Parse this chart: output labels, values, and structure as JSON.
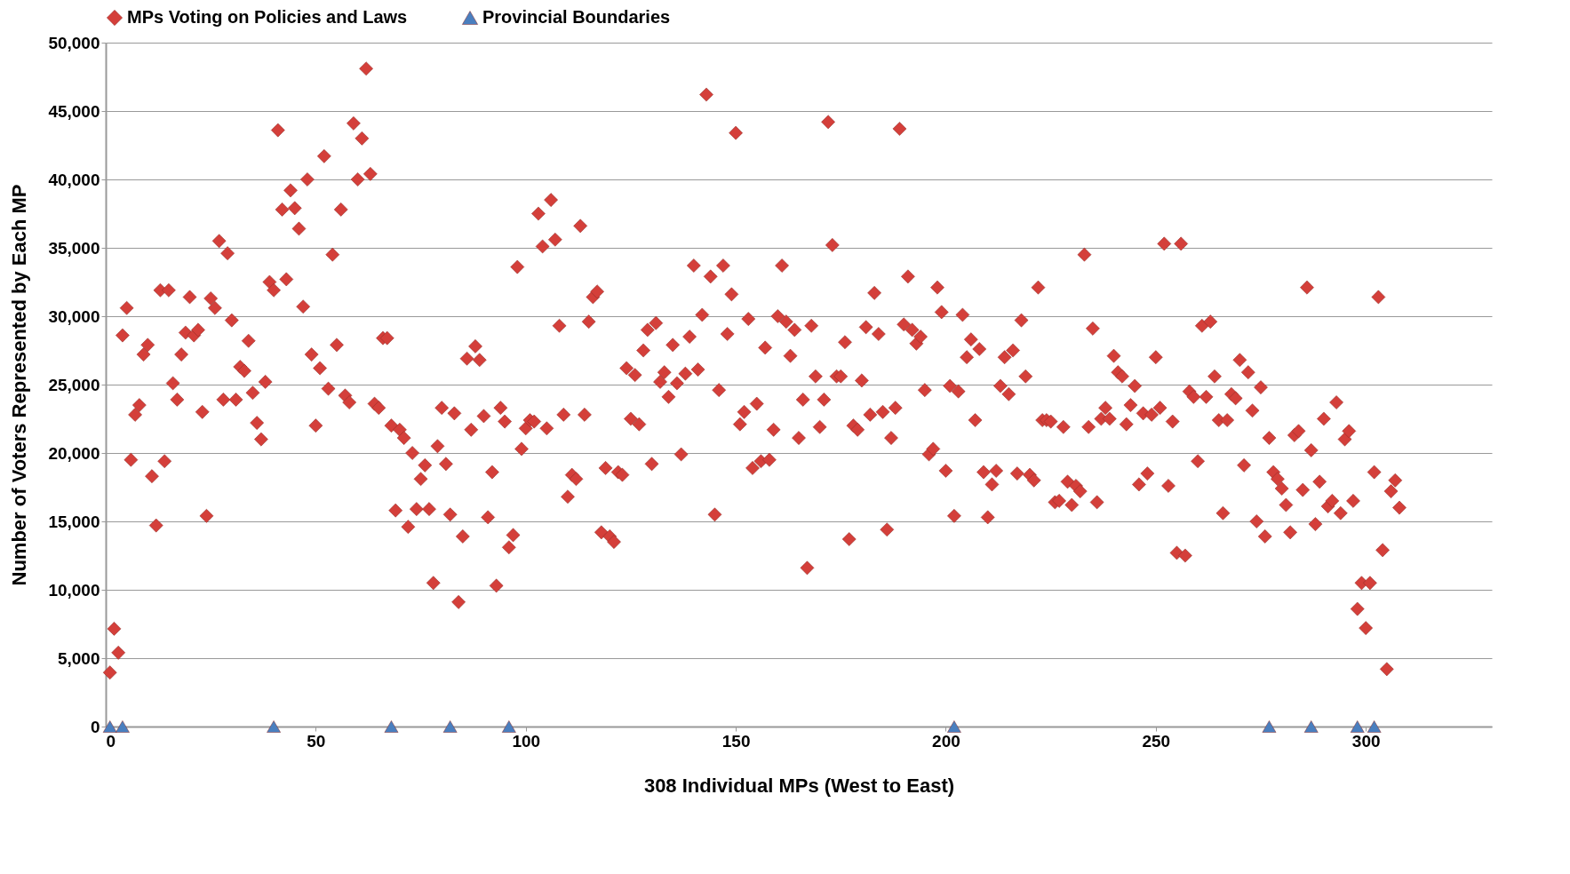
{
  "chart_data": {
    "type": "scatter",
    "xlabel": "308 Individual MPs (West to East)",
    "ylabel": "Number of Voters Represented by Each MP",
    "xlim": [
      0,
      330
    ],
    "xticks": [
      0,
      50,
      100,
      150,
      200,
      250,
      300
    ],
    "ylim": [
      0,
      50000
    ],
    "yticks": [
      {
        "value": 0,
        "label": "0"
      },
      {
        "value": 5000,
        "label": "5,000"
      },
      {
        "value": 10000,
        "label": "10,000"
      },
      {
        "value": 15000,
        "label": "15,000"
      },
      {
        "value": 20000,
        "label": "20,000"
      },
      {
        "value": 25000,
        "label": "25,000"
      },
      {
        "value": 30000,
        "label": "30,000"
      },
      {
        "value": 35000,
        "label": "35,000"
      },
      {
        "value": 40000,
        "label": "40,000"
      },
      {
        "value": 45000,
        "label": "45,000"
      },
      {
        "value": 50000,
        "label": "50,000"
      }
    ],
    "grid": "y",
    "legend": "top",
    "series": [
      {
        "name": "MPs Voting on Policies and Laws",
        "color": "#d43f3a",
        "marker": "diamond",
        "x": [
          1,
          2,
          3,
          4,
          5,
          6,
          7,
          8,
          9,
          10,
          11,
          12,
          13,
          14,
          15,
          16,
          17,
          18,
          19,
          20,
          21,
          22,
          23,
          24,
          25,
          26,
          27,
          28,
          29,
          30,
          31,
          32,
          33,
          34,
          35,
          36,
          37,
          38,
          39,
          40,
          41,
          42,
          43,
          44,
          45,
          46,
          47,
          48,
          49,
          50,
          51,
          52,
          53,
          54,
          55,
          56,
          57,
          58,
          59,
          60,
          61,
          62,
          63,
          64,
          65,
          66,
          67,
          68,
          69,
          70,
          71,
          72,
          73,
          74,
          75,
          76,
          77,
          78,
          79,
          80,
          81,
          82,
          83,
          84,
          85,
          86,
          87,
          88,
          89,
          90,
          91,
          92,
          93,
          94,
          95,
          96,
          97,
          98,
          99,
          100,
          101,
          102,
          103,
          104,
          105,
          106,
          107,
          108,
          109,
          110,
          111,
          112,
          113,
          114,
          115,
          116,
          117,
          118,
          119,
          120,
          121,
          122,
          123,
          124,
          125,
          126,
          127,
          128,
          129,
          130,
          131,
          132,
          133,
          134,
          135,
          136,
          137,
          138,
          139,
          140,
          141,
          142,
          143,
          144,
          145,
          146,
          147,
          148,
          149,
          150,
          151,
          152,
          153,
          154,
          155,
          156,
          157,
          158,
          159,
          160,
          161,
          162,
          163,
          164,
          165,
          166,
          167,
          168,
          169,
          170,
          171,
          172,
          173,
          174,
          175,
          176,
          177,
          178,
          179,
          180,
          181,
          182,
          183,
          184,
          185,
          186,
          187,
          188,
          189,
          190,
          191,
          192,
          193,
          194,
          195,
          196,
          197,
          198,
          199,
          200,
          201,
          202,
          203,
          204,
          205,
          206,
          207,
          208,
          209,
          210,
          211,
          212,
          213,
          214,
          215,
          216,
          217,
          218,
          219,
          220,
          221,
          222,
          223,
          224,
          225,
          226,
          227,
          228,
          229,
          230,
          231,
          232,
          233,
          234,
          235,
          236,
          237,
          238,
          239,
          240,
          241,
          242,
          243,
          244,
          245,
          246,
          247,
          248,
          249,
          250,
          251,
          252,
          253,
          254,
          255,
          256,
          257,
          258,
          259,
          260,
          261,
          262,
          263,
          264,
          265,
          266,
          267,
          268,
          269,
          270,
          271,
          272,
          273,
          274,
          275,
          276,
          277,
          278,
          279,
          280,
          281,
          282,
          283,
          284,
          285,
          286,
          287,
          288,
          289,
          290,
          291,
          292,
          293,
          294,
          295,
          296,
          297,
          298,
          299,
          300,
          301,
          302,
          303,
          304,
          305,
          306,
          307,
          308
        ],
        "values": [
          3950,
          7150,
          5400,
          28600,
          30600,
          19500,
          22800,
          23500,
          27200,
          27900,
          18300,
          14700,
          31900,
          19400,
          31900,
          25100,
          23900,
          27200,
          28800,
          31400,
          28600,
          29000,
          23000,
          15400,
          31300,
          30600,
          35500,
          23900,
          34600,
          29700,
          23900,
          26300,
          26000,
          28200,
          24400,
          22200,
          21000,
          25200,
          32500,
          31900,
          43600,
          37800,
          32700,
          39200,
          37900,
          36400,
          30700,
          40000,
          27200,
          22000,
          26200,
          41700,
          24700,
          34500,
          27900,
          37800,
          24200,
          23700,
          44100,
          40000,
          43000,
          48100,
          40400,
          23600,
          23300,
          28400,
          28400,
          22000,
          15800,
          21700,
          21100,
          14600,
          20000,
          15900,
          18100,
          19100,
          15900,
          10500,
          20500,
          23300,
          19200,
          15500,
          22900,
          9100,
          13900,
          26900,
          21700,
          27800,
          26800,
          22700,
          15300,
          18600,
          10300,
          23300,
          22300,
          13100,
          14000,
          33600,
          20300,
          21800,
          22400,
          22300,
          37500,
          35100,
          21800,
          38500,
          35600,
          29300,
          22800,
          16800,
          18400,
          18100,
          36600,
          22800,
          29600,
          31400,
          31800,
          14200,
          18900,
          13900,
          13500,
          18600,
          18400,
          26200,
          22500,
          25700,
          22100,
          27500,
          29000,
          19200,
          29500,
          25200,
          25900,
          24100,
          27900,
          25100,
          19900,
          25800,
          28500,
          33700,
          26100,
          30100,
          46200,
          32900,
          15500,
          24600,
          33700,
          28700,
          31600,
          43400,
          22100,
          23000,
          29800,
          18900,
          23600,
          19400,
          27700,
          19500,
          21700,
          30000,
          33700,
          29600,
          27100,
          29000,
          21100,
          23900,
          11600,
          29300,
          25600,
          21900,
          23900,
          44200,
          35200,
          25600,
          25600,
          28100,
          13700,
          22000,
          21700,
          25300,
          29200,
          22800,
          31700,
          28700,
          23000,
          14400,
          21100,
          23300,
          43700,
          29400,
          32900,
          29000,
          28000,
          28500,
          24600,
          19900,
          20300,
          32100,
          30300,
          18700,
          24900,
          15400,
          24500,
          30100,
          27000,
          28300,
          22400,
          27600,
          18600,
          15300,
          17700,
          18700,
          24900,
          27000,
          24300,
          27500,
          18500,
          29700,
          25600,
          18400,
          18000,
          32100,
          22400,
          22400,
          22300,
          16400,
          16500,
          21900,
          17900,
          16200,
          17600,
          17200,
          34500,
          21900,
          29100,
          16400,
          22500,
          23300,
          22500,
          27100,
          25900,
          25600,
          22100,
          23500,
          24900,
          17700,
          22900,
          18500,
          22800,
          27000,
          23300,
          35300,
          17600,
          22300,
          12700,
          35300,
          12500,
          24500,
          24100,
          19400,
          29300,
          24100,
          29600,
          25600,
          22400,
          15600,
          22400,
          24300,
          24000,
          26800,
          19100,
          25900,
          23100,
          15000,
          24800,
          13900,
          21100,
          18600,
          18100,
          17400,
          16200,
          14200,
          21300,
          21600,
          17300,
          32100,
          20200,
          14800,
          17900,
          22500,
          16100,
          16500,
          23700,
          15600,
          21000,
          21600,
          16500,
          8600,
          10500,
          7200,
          10500,
          18600,
          31400,
          12900,
          4200,
          17200,
          18000,
          16000
        ]
      },
      {
        "name": "Provincial Boundaries",
        "color": "#4a7fbf",
        "marker": "triangle",
        "x": [
          1,
          4,
          40,
          68,
          82,
          96,
          202,
          277,
          287,
          298,
          302
        ],
        "values": [
          0,
          0,
          0,
          0,
          0,
          0,
          0,
          0,
          0,
          0,
          0
        ]
      }
    ]
  }
}
